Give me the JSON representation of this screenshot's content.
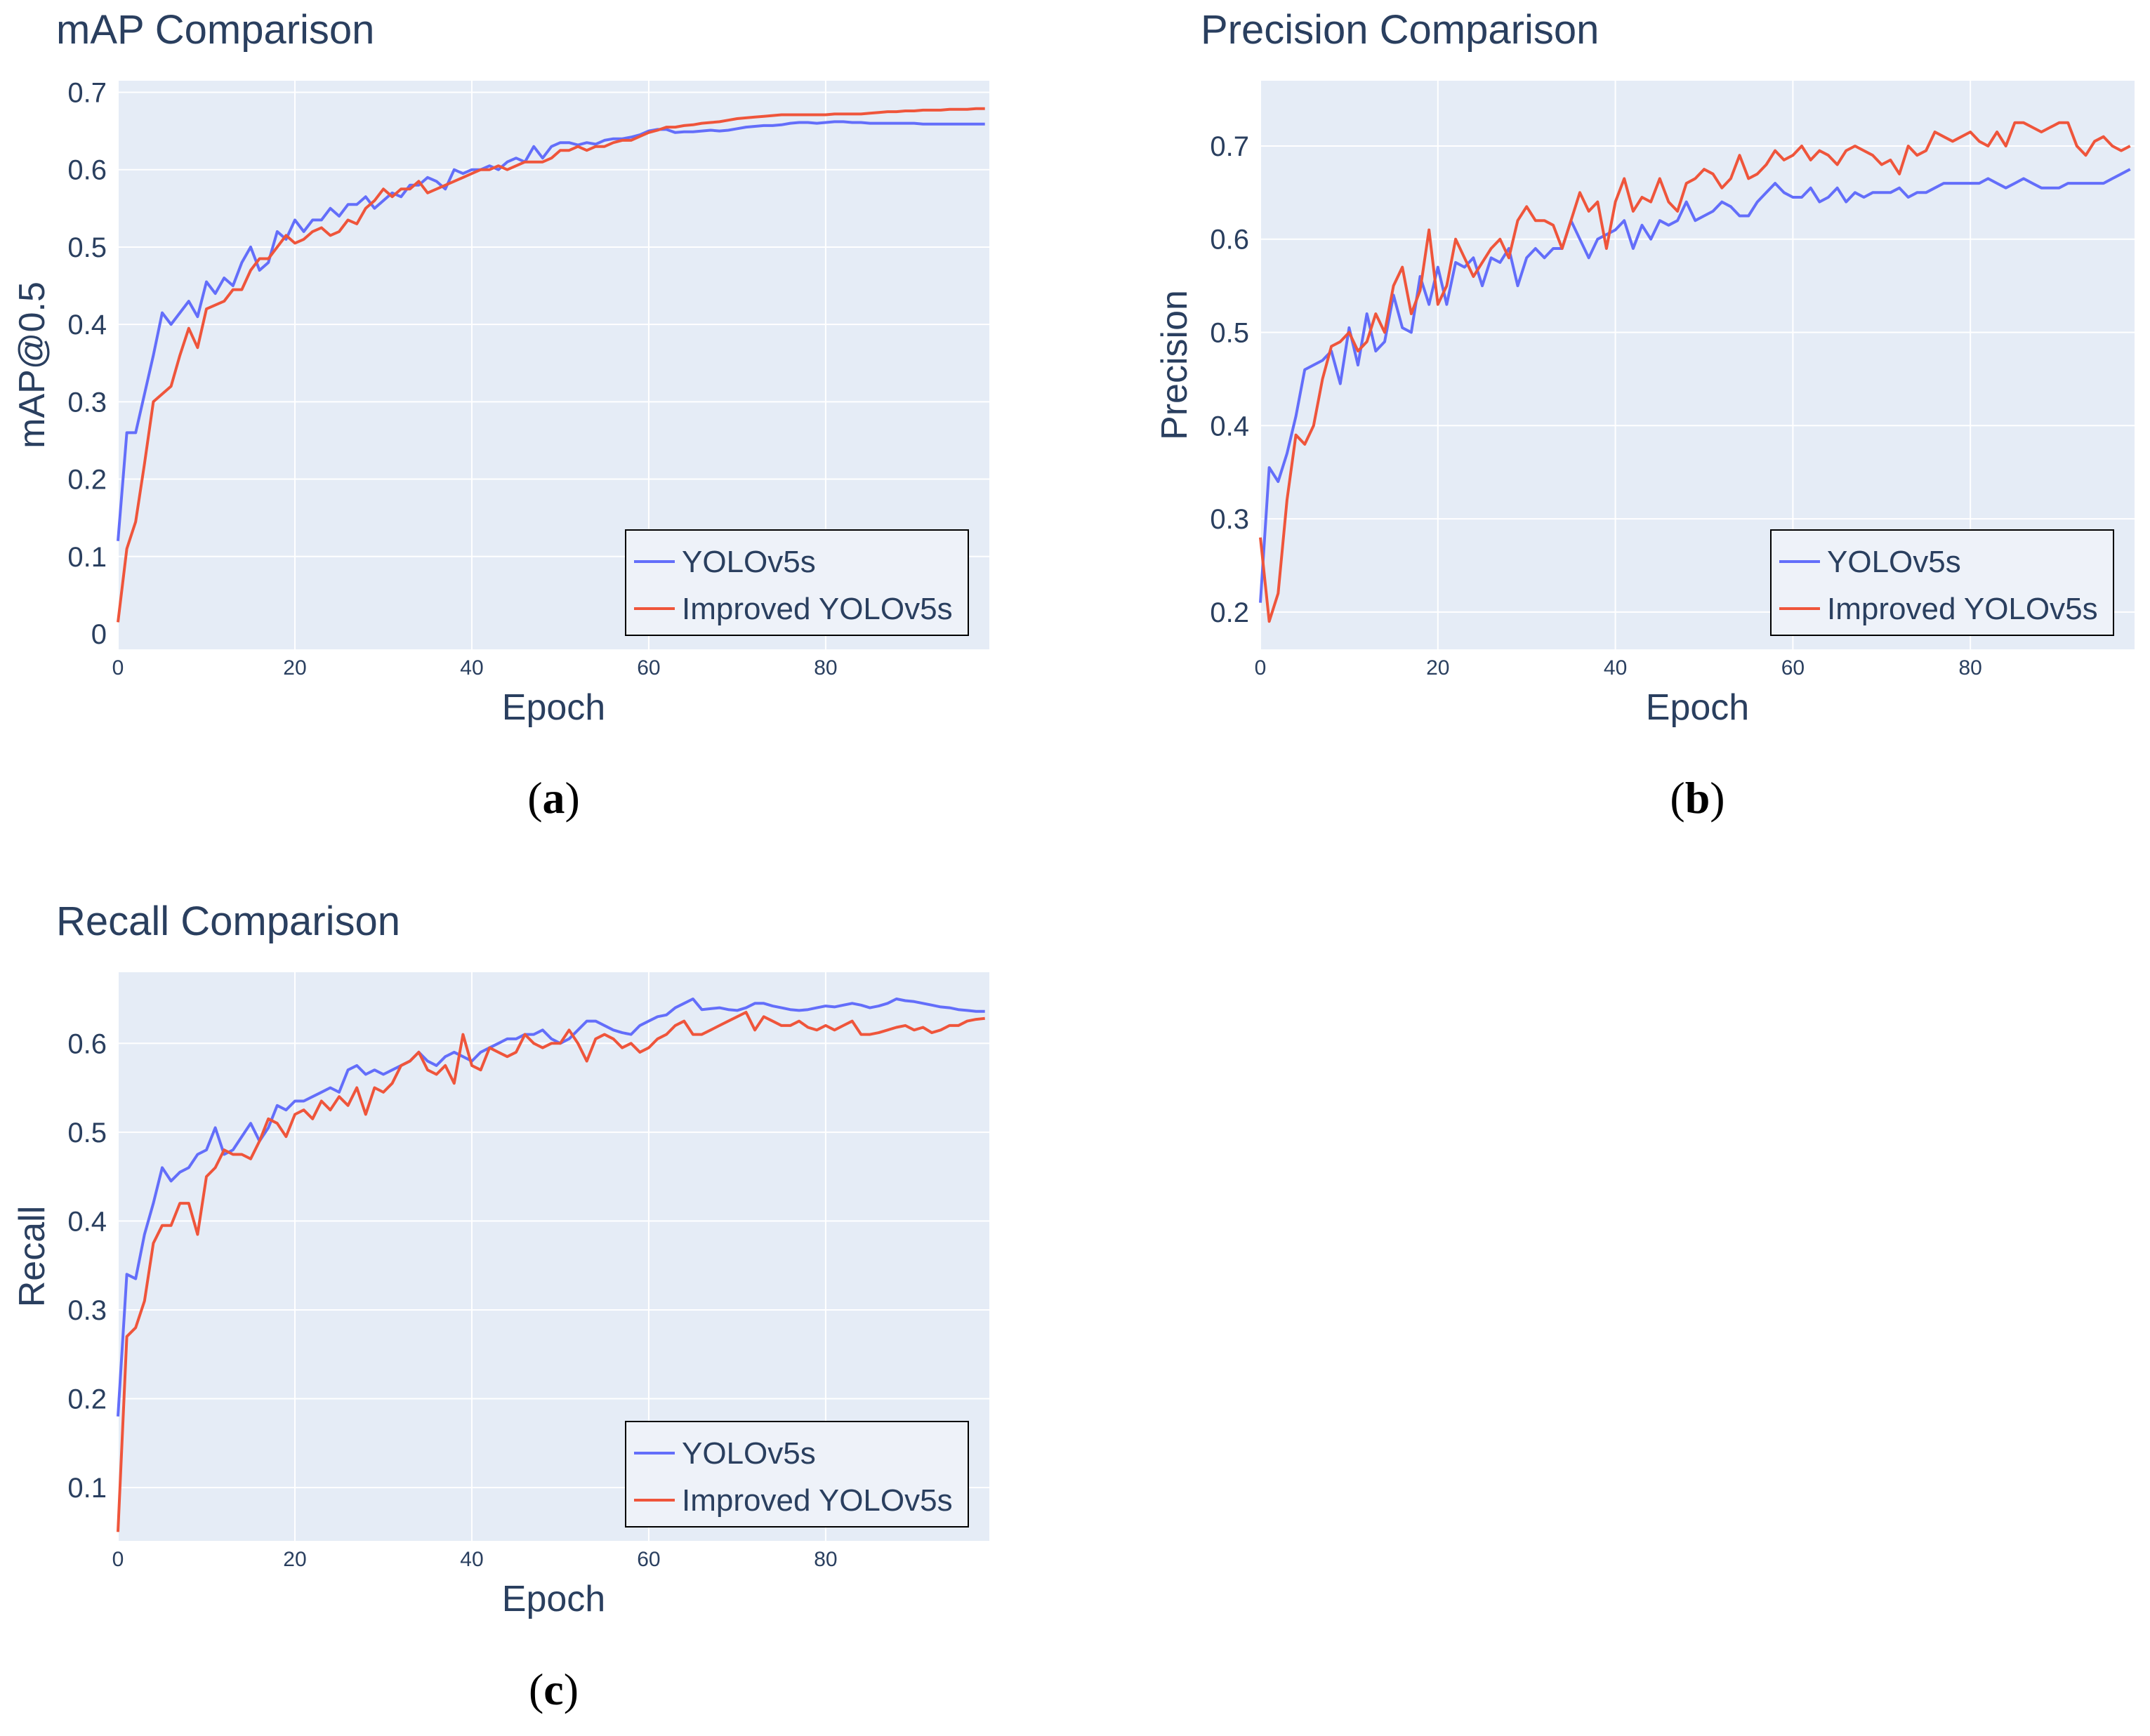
{
  "colors": {
    "plot_bg": "#e5ecf6",
    "grid": "#ffffff",
    "baseline": "#2a3f5f",
    "text": "#2a3f5f",
    "legend_bg": "#eef2f9",
    "legend_border": "#000000",
    "series_colors": [
      "#636efa",
      "#ef553b"
    ]
  },
  "chart_data": [
    {
      "id": "a",
      "type": "line",
      "title": "mAP Comparison",
      "xlabel": "Epoch",
      "ylabel": "mAP@0.5",
      "caption": {
        "open": "(",
        "letter": "a",
        "close": ")"
      },
      "xlim": [
        0,
        98.5
      ],
      "ylim": [
        -0.02,
        0.715
      ],
      "xticks": [
        0,
        20,
        40,
        60,
        80
      ],
      "yticks": [
        0,
        0.1,
        0.2,
        0.3,
        0.4,
        0.5,
        0.6,
        0.7
      ],
      "ytick_labels": [
        "0",
        "0.1",
        "0.2",
        "0.3",
        "0.4",
        "0.5",
        "0.6",
        "0.7"
      ],
      "zero_line": true,
      "legend": "bottom-right",
      "series": [
        {
          "name": "YOLOv5s",
          "values": [
            0.12,
            0.26,
            0.26,
            0.31,
            0.36,
            0.415,
            0.4,
            0.415,
            0.43,
            0.41,
            0.455,
            0.44,
            0.46,
            0.45,
            0.48,
            0.5,
            0.47,
            0.48,
            0.52,
            0.51,
            0.535,
            0.52,
            0.535,
            0.535,
            0.55,
            0.54,
            0.555,
            0.555,
            0.565,
            0.55,
            0.56,
            0.57,
            0.565,
            0.58,
            0.58,
            0.59,
            0.585,
            0.575,
            0.6,
            0.595,
            0.6,
            0.6,
            0.605,
            0.6,
            0.61,
            0.615,
            0.61,
            0.63,
            0.615,
            0.63,
            0.635,
            0.635,
            0.632,
            0.635,
            0.633,
            0.638,
            0.64,
            0.64,
            0.642,
            0.645,
            0.65,
            0.652,
            0.652,
            0.648,
            0.649,
            0.649,
            0.65,
            0.651,
            0.65,
            0.651,
            0.653,
            0.655,
            0.656,
            0.657,
            0.657,
            0.658,
            0.66,
            0.661,
            0.661,
            0.66,
            0.661,
            0.662,
            0.662,
            0.661,
            0.661,
            0.66,
            0.66,
            0.66,
            0.66,
            0.66,
            0.66,
            0.659,
            0.659,
            0.659,
            0.659,
            0.659,
            0.659,
            0.659,
            0.659
          ]
        },
        {
          "name": "Improved YOLOv5s",
          "values": [
            0.015,
            0.11,
            0.145,
            0.22,
            0.3,
            0.31,
            0.32,
            0.36,
            0.395,
            0.37,
            0.42,
            0.425,
            0.43,
            0.445,
            0.445,
            0.47,
            0.485,
            0.485,
            0.5,
            0.515,
            0.505,
            0.51,
            0.52,
            0.525,
            0.515,
            0.52,
            0.535,
            0.53,
            0.55,
            0.56,
            0.575,
            0.565,
            0.575,
            0.575,
            0.585,
            0.57,
            0.575,
            0.58,
            0.585,
            0.59,
            0.595,
            0.6,
            0.6,
            0.605,
            0.6,
            0.605,
            0.61,
            0.61,
            0.61,
            0.615,
            0.625,
            0.625,
            0.63,
            0.625,
            0.63,
            0.63,
            0.635,
            0.638,
            0.638,
            0.643,
            0.648,
            0.651,
            0.655,
            0.655,
            0.657,
            0.658,
            0.66,
            0.661,
            0.662,
            0.664,
            0.666,
            0.667,
            0.668,
            0.669,
            0.67,
            0.671,
            0.671,
            0.671,
            0.671,
            0.671,
            0.671,
            0.672,
            0.672,
            0.672,
            0.672,
            0.673,
            0.674,
            0.675,
            0.675,
            0.676,
            0.676,
            0.677,
            0.677,
            0.677,
            0.678,
            0.678,
            0.678,
            0.679,
            0.679
          ]
        }
      ]
    },
    {
      "id": "b",
      "type": "line",
      "title": "Precision Comparison",
      "xlabel": "Epoch",
      "ylabel": "Precision",
      "caption": {
        "open": "(",
        "letter": "b",
        "close": ")"
      },
      "xlim": [
        0,
        98.5
      ],
      "ylim": [
        0.16,
        0.77
      ],
      "xticks": [
        0,
        20,
        40,
        60,
        80
      ],
      "yticks": [
        0.2,
        0.3,
        0.4,
        0.5,
        0.6,
        0.7
      ],
      "ytick_labels": [
        "0.2",
        "0.3",
        "0.4",
        "0.5",
        "0.6",
        "0.7"
      ],
      "zero_line": false,
      "legend": "bottom-right",
      "series": [
        {
          "name": "YOLOv5s",
          "values": [
            0.21,
            0.355,
            0.34,
            0.37,
            0.41,
            0.46,
            0.465,
            0.47,
            0.48,
            0.445,
            0.505,
            0.465,
            0.52,
            0.48,
            0.49,
            0.54,
            0.505,
            0.5,
            0.56,
            0.53,
            0.57,
            0.53,
            0.575,
            0.57,
            0.58,
            0.55,
            0.58,
            0.575,
            0.59,
            0.55,
            0.58,
            0.59,
            0.58,
            0.59,
            0.59,
            0.62,
            0.6,
            0.58,
            0.6,
            0.605,
            0.61,
            0.62,
            0.59,
            0.615,
            0.6,
            0.62,
            0.615,
            0.62,
            0.64,
            0.62,
            0.625,
            0.63,
            0.64,
            0.635,
            0.625,
            0.625,
            0.64,
            0.65,
            0.66,
            0.65,
            0.645,
            0.645,
            0.655,
            0.64,
            0.645,
            0.655,
            0.64,
            0.65,
            0.645,
            0.65,
            0.65,
            0.65,
            0.655,
            0.645,
            0.65,
            0.65,
            0.655,
            0.66,
            0.66,
            0.66,
            0.66,
            0.66,
            0.665,
            0.66,
            0.655,
            0.66,
            0.665,
            0.66,
            0.655,
            0.655,
            0.655,
            0.66,
            0.66,
            0.66,
            0.66,
            0.66,
            0.665,
            0.67,
            0.675
          ]
        },
        {
          "name": "Improved YOLOv5s",
          "values": [
            0.28,
            0.19,
            0.22,
            0.32,
            0.39,
            0.38,
            0.4,
            0.45,
            0.485,
            0.49,
            0.5,
            0.48,
            0.49,
            0.52,
            0.5,
            0.55,
            0.57,
            0.52,
            0.545,
            0.61,
            0.53,
            0.55,
            0.6,
            0.58,
            0.56,
            0.575,
            0.59,
            0.6,
            0.58,
            0.62,
            0.635,
            0.62,
            0.62,
            0.615,
            0.59,
            0.62,
            0.65,
            0.63,
            0.64,
            0.59,
            0.64,
            0.665,
            0.63,
            0.645,
            0.64,
            0.665,
            0.64,
            0.63,
            0.66,
            0.665,
            0.675,
            0.67,
            0.655,
            0.665,
            0.69,
            0.665,
            0.67,
            0.68,
            0.695,
            0.685,
            0.69,
            0.7,
            0.685,
            0.695,
            0.69,
            0.68,
            0.695,
            0.7,
            0.695,
            0.69,
            0.68,
            0.685,
            0.67,
            0.7,
            0.69,
            0.695,
            0.715,
            0.71,
            0.705,
            0.71,
            0.715,
            0.705,
            0.7,
            0.715,
            0.7,
            0.725,
            0.725,
            0.72,
            0.715,
            0.72,
            0.725,
            0.725,
            0.7,
            0.69,
            0.705,
            0.71,
            0.7,
            0.695,
            0.7
          ]
        }
      ]
    },
    {
      "id": "c",
      "type": "line",
      "title": "Recall Comparison",
      "xlabel": "Epoch",
      "ylabel": "Recall",
      "caption": {
        "open": "(",
        "letter": "c",
        "close": ")"
      },
      "xlim": [
        0,
        98.5
      ],
      "ylim": [
        0.04,
        0.68
      ],
      "xticks": [
        0,
        20,
        40,
        60,
        80
      ],
      "yticks": [
        0.1,
        0.2,
        0.3,
        0.4,
        0.5,
        0.6
      ],
      "ytick_labels": [
        "0.1",
        "0.2",
        "0.3",
        "0.4",
        "0.5",
        "0.6"
      ],
      "zero_line": false,
      "legend": "bottom-right",
      "series": [
        {
          "name": "YOLOv5s",
          "values": [
            0.18,
            0.34,
            0.335,
            0.385,
            0.42,
            0.46,
            0.445,
            0.455,
            0.46,
            0.475,
            0.48,
            0.505,
            0.475,
            0.48,
            0.495,
            0.51,
            0.49,
            0.505,
            0.53,
            0.525,
            0.535,
            0.535,
            0.54,
            0.545,
            0.55,
            0.545,
            0.57,
            0.575,
            0.565,
            0.57,
            0.565,
            0.57,
            0.575,
            0.58,
            0.59,
            0.58,
            0.575,
            0.585,
            0.59,
            0.585,
            0.58,
            0.59,
            0.595,
            0.6,
            0.605,
            0.605,
            0.61,
            0.61,
            0.615,
            0.605,
            0.6,
            0.605,
            0.615,
            0.625,
            0.625,
            0.62,
            0.615,
            0.612,
            0.61,
            0.62,
            0.625,
            0.63,
            0.632,
            0.64,
            0.645,
            0.65,
            0.638,
            0.639,
            0.64,
            0.638,
            0.637,
            0.64,
            0.645,
            0.645,
            0.642,
            0.64,
            0.638,
            0.637,
            0.638,
            0.64,
            0.642,
            0.641,
            0.643,
            0.645,
            0.643,
            0.64,
            0.642,
            0.645,
            0.65,
            0.648,
            0.647,
            0.645,
            0.643,
            0.641,
            0.64,
            0.638,
            0.637,
            0.636,
            0.636
          ]
        },
        {
          "name": "Improved YOLOv5s",
          "values": [
            0.05,
            0.27,
            0.28,
            0.31,
            0.375,
            0.395,
            0.395,
            0.42,
            0.42,
            0.385,
            0.45,
            0.46,
            0.48,
            0.475,
            0.475,
            0.47,
            0.49,
            0.515,
            0.51,
            0.495,
            0.52,
            0.525,
            0.515,
            0.535,
            0.525,
            0.54,
            0.53,
            0.55,
            0.52,
            0.55,
            0.545,
            0.555,
            0.575,
            0.58,
            0.59,
            0.57,
            0.565,
            0.575,
            0.555,
            0.61,
            0.575,
            0.57,
            0.595,
            0.59,
            0.585,
            0.59,
            0.61,
            0.6,
            0.595,
            0.6,
            0.6,
            0.615,
            0.6,
            0.58,
            0.605,
            0.61,
            0.605,
            0.595,
            0.6,
            0.59,
            0.595,
            0.605,
            0.61,
            0.62,
            0.625,
            0.61,
            0.61,
            0.615,
            0.62,
            0.625,
            0.63,
            0.635,
            0.615,
            0.63,
            0.625,
            0.62,
            0.62,
            0.625,
            0.618,
            0.615,
            0.62,
            0.615,
            0.62,
            0.625,
            0.61,
            0.61,
            0.612,
            0.615,
            0.618,
            0.62,
            0.615,
            0.618,
            0.612,
            0.615,
            0.62,
            0.62,
            0.625,
            0.627,
            0.628
          ]
        }
      ]
    }
  ]
}
